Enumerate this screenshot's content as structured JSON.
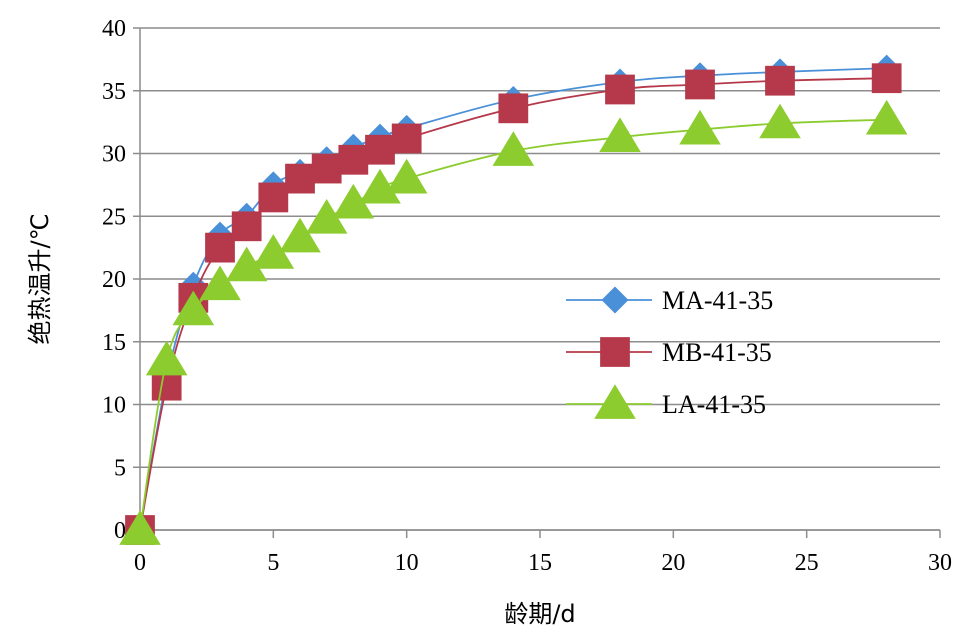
{
  "chart_data": {
    "type": "line",
    "title": "",
    "xlabel": "龄期/d",
    "ylabel": "绝热温升/℃",
    "xlim": [
      0,
      30
    ],
    "ylim": [
      0,
      40
    ],
    "xticks": [
      "0",
      "5",
      "10",
      "15",
      "20",
      "25",
      "30"
    ],
    "yticks": [
      "0",
      "5",
      "10",
      "15",
      "20",
      "25",
      "30",
      "35",
      "40"
    ],
    "grid": "horizontal",
    "legend_position": "center-right",
    "series": [
      {
        "name": "MA-41-35",
        "color": "#4a90d9",
        "marker": "diamond",
        "x": [
          0,
          1,
          2,
          3,
          4,
          5,
          6,
          7,
          8,
          9,
          10,
          14,
          18,
          21,
          24,
          28
        ],
        "values": [
          0,
          12,
          19.5,
          23.5,
          25,
          27.5,
          28.5,
          29.5,
          30.5,
          31.3,
          32,
          34.3,
          35.7,
          36.2,
          36.5,
          36.8
        ]
      },
      {
        "name": "MB-41-35",
        "color": "#b5394a",
        "marker": "square",
        "x": [
          0,
          1,
          2,
          3,
          4,
          5,
          6,
          7,
          8,
          9,
          10,
          14,
          18,
          21,
          24,
          28
        ],
        "values": [
          0,
          11.5,
          18.5,
          22.5,
          24.2,
          26.5,
          28,
          28.8,
          29.5,
          30.3,
          31.2,
          33.6,
          35.1,
          35.5,
          35.8,
          36
        ]
      },
      {
        "name": "LA-41-35",
        "color": "#8ccc2e",
        "marker": "triangle",
        "x": [
          0,
          1,
          2,
          3,
          4,
          5,
          6,
          7,
          8,
          9,
          10,
          14,
          18,
          21,
          24,
          28
        ],
        "values": [
          0,
          13.5,
          17.5,
          19.5,
          21,
          22,
          23.3,
          24.8,
          26,
          27.2,
          28,
          30.2,
          31.3,
          31.9,
          32.4,
          32.7
        ]
      }
    ]
  }
}
